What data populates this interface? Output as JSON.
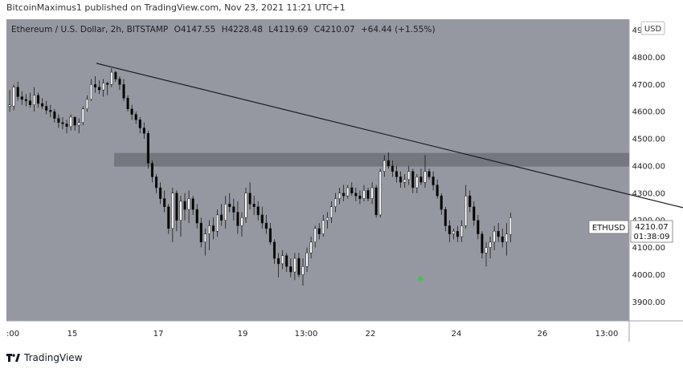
{
  "header": {
    "text": "BitcoinMaximus1 published on TradingView.com, Nov 23, 2021 11:21 UTC+1"
  },
  "legend": {
    "symbol": "Ethereum / U.S. Dollar, 2h, BITSTAMP",
    "o_label": "O",
    "o_value": "4147.55",
    "h_label": "H",
    "h_value": "4228.48",
    "l_label": "L",
    "l_value": "4119.69",
    "c_label": "C",
    "c_value": "4210.07",
    "change": "+64.44 (+1.55%)"
  },
  "currency_button": "USD",
  "price_tag": {
    "symbol": "ETHUSD",
    "price": "4210.07",
    "countdown": "01:38:09"
  },
  "footer": {
    "brand": "TradingView",
    "logo_icon": "tradingview-logo-icon"
  },
  "colors": {
    "plot_bg": "#9598a1",
    "candle_up": "#ffffff",
    "candle_down": "#000000",
    "zone": "#6f7178",
    "arrow": "#2ecc40"
  },
  "chart_data": {
    "type": "candlestick",
    "y_ticks": [
      "4900.00",
      "4800.00",
      "4700.00",
      "4600.00",
      "4500.00",
      "4400.00",
      "4300.00",
      "4200.00",
      "4100.00",
      "4000.00",
      "3900.00"
    ],
    "x_ticks": [
      ":00",
      "15",
      "17",
      "19",
      "13:00",
      "22",
      "24",
      "26",
      "13:00"
    ],
    "ylim": [
      3830,
      4940
    ],
    "resistance_zone": [
      4398,
      4448
    ],
    "trendline": [
      [
        11,
        4778
      ],
      [
        95,
        4158
      ]
    ],
    "arrow": {
      "x": 73.1,
      "y": 3985
    },
    "candles": [
      [
        0,
        4620,
        4680,
        4600,
        4625
      ],
      [
        0.5,
        4620,
        4700,
        4605,
        4690
      ],
      [
        1,
        4690,
        4710,
        4640,
        4655
      ],
      [
        1.5,
        4655,
        4675,
        4625,
        4645
      ],
      [
        2,
        4645,
        4665,
        4620,
        4640
      ],
      [
        2.5,
        4640,
        4670,
        4615,
        4625
      ],
      [
        3,
        4625,
        4690,
        4600,
        4660
      ],
      [
        3.5,
        4660,
        4670,
        4615,
        4630
      ],
      [
        4,
        4630,
        4650,
        4610,
        4620
      ],
      [
        4.5,
        4620,
        4640,
        4590,
        4605
      ],
      [
        5,
        4605,
        4625,
        4580,
        4600
      ],
      [
        5.5,
        4600,
        4610,
        4560,
        4575
      ],
      [
        6,
        4575,
        4590,
        4540,
        4560
      ],
      [
        6.5,
        4560,
        4580,
        4535,
        4555
      ],
      [
        7,
        4555,
        4570,
        4520,
        4545
      ],
      [
        7.5,
        4545,
        4590,
        4530,
        4580
      ],
      [
        8,
        4580,
        4570,
        4530,
        4550
      ],
      [
        8.5,
        4550,
        4575,
        4520,
        4560
      ],
      [
        9,
        4560,
        4620,
        4550,
        4610
      ],
      [
        9.5,
        4610,
        4660,
        4600,
        4645
      ],
      [
        10,
        4645,
        4720,
        4640,
        4700
      ],
      [
        10.5,
        4700,
        4730,
        4670,
        4690
      ],
      [
        11,
        4690,
        4715,
        4665,
        4680
      ],
      [
        11.5,
        4680,
        4720,
        4655,
        4705
      ],
      [
        12,
        4705,
        4710,
        4660,
        4700
      ],
      [
        12.5,
        4700,
        4760,
        4690,
        4745
      ],
      [
        13,
        4745,
        4750,
        4710,
        4720
      ],
      [
        13.5,
        4720,
        4730,
        4680,
        4700
      ],
      [
        14,
        4700,
        4720,
        4640,
        4650
      ],
      [
        14.5,
        4650,
        4660,
        4600,
        4610
      ],
      [
        15,
        4610,
        4625,
        4570,
        4590
      ],
      [
        15.5,
        4590,
        4600,
        4555,
        4570
      ],
      [
        16,
        4570,
        4580,
        4520,
        4540
      ],
      [
        16.5,
        4540,
        4560,
        4500,
        4520
      ],
      [
        17,
        4520,
        4530,
        4390,
        4410
      ],
      [
        17.5,
        4410,
        4420,
        4340,
        4360
      ],
      [
        18,
        4360,
        4370,
        4300,
        4320
      ],
      [
        18.5,
        4320,
        4340,
        4260,
        4280
      ],
      [
        19,
        4280,
        4310,
        4230,
        4250
      ],
      [
        19.5,
        4250,
        4260,
        4150,
        4170
      ],
      [
        20,
        4170,
        4320,
        4120,
        4300
      ],
      [
        20.5,
        4300,
        4310,
        4160,
        4200
      ],
      [
        21,
        4200,
        4290,
        4140,
        4270
      ],
      [
        21.5,
        4270,
        4300,
        4200,
        4240
      ],
      [
        22,
        4240,
        4310,
        4190,
        4280
      ],
      [
        22.5,
        4280,
        4290,
        4220,
        4240
      ],
      [
        23,
        4240,
        4260,
        4170,
        4190
      ],
      [
        23.5,
        4190,
        4210,
        4100,
        4120
      ],
      [
        24,
        4120,
        4170,
        4070,
        4150
      ],
      [
        24.5,
        4150,
        4200,
        4090,
        4180
      ],
      [
        25,
        4180,
        4210,
        4130,
        4160
      ],
      [
        25.5,
        4160,
        4240,
        4140,
        4220
      ],
      [
        26,
        4220,
        4260,
        4180,
        4200
      ],
      [
        26.5,
        4200,
        4290,
        4170,
        4260
      ],
      [
        27,
        4260,
        4300,
        4230,
        4250
      ],
      [
        27.5,
        4250,
        4280,
        4200,
        4230
      ],
      [
        28,
        4230,
        4270,
        4150,
        4180
      ],
      [
        28.5,
        4180,
        4230,
        4140,
        4210
      ],
      [
        29,
        4210,
        4320,
        4190,
        4300
      ],
      [
        29.5,
        4300,
        4340,
        4240,
        4260
      ],
      [
        30,
        4260,
        4290,
        4220,
        4250
      ],
      [
        30.5,
        4250,
        4270,
        4200,
        4220
      ],
      [
        31,
        4220,
        4250,
        4170,
        4190
      ],
      [
        31.5,
        4190,
        4220,
        4150,
        4170
      ],
      [
        32,
        4170,
        4190,
        4110,
        4120
      ],
      [
        32.5,
        4120,
        4130,
        4040,
        4060
      ],
      [
        33,
        4060,
        4080,
        3990,
        4040
      ],
      [
        33.5,
        4040,
        4090,
        4020,
        4070
      ],
      [
        34,
        4070,
        4080,
        4010,
        4030
      ],
      [
        34.5,
        4030,
        4060,
        3990,
        4010
      ],
      [
        35,
        4010,
        4080,
        3980,
        4060
      ],
      [
        35.5,
        4060,
        4080,
        3990,
        4000
      ],
      [
        36,
        4000,
        4060,
        3960,
        4030
      ],
      [
        36.5,
        4030,
        4100,
        4010,
        4080
      ],
      [
        37,
        4080,
        4140,
        4060,
        4120
      ],
      [
        37.5,
        4120,
        4180,
        4100,
        4170
      ],
      [
        38,
        4170,
        4190,
        4130,
        4150
      ],
      [
        38.5,
        4150,
        4220,
        4140,
        4200
      ],
      [
        39,
        4200,
        4230,
        4170,
        4210
      ],
      [
        39.5,
        4210,
        4270,
        4190,
        4250
      ],
      [
        40,
        4250,
        4300,
        4230,
        4280
      ],
      [
        40.5,
        4280,
        4320,
        4260,
        4300
      ],
      [
        41,
        4300,
        4330,
        4270,
        4290
      ],
      [
        41.5,
        4290,
        4330,
        4280,
        4320
      ],
      [
        42,
        4320,
        4340,
        4290,
        4300
      ],
      [
        42.5,
        4300,
        4320,
        4270,
        4290
      ],
      [
        43,
        4290,
        4310,
        4260,
        4280
      ],
      [
        43.5,
        4280,
        4330,
        4270,
        4310
      ],
      [
        44,
        4310,
        4320,
        4270,
        4280
      ],
      [
        44.5,
        4280,
        4340,
        4260,
        4320
      ],
      [
        45,
        4320,
        4330,
        4210,
        4220
      ],
      [
        45.5,
        4220,
        4390,
        4210,
        4380
      ],
      [
        46,
        4380,
        4440,
        4360,
        4420
      ],
      [
        46.5,
        4420,
        4450,
        4390,
        4400
      ],
      [
        47,
        4400,
        4420,
        4360,
        4380
      ],
      [
        47.5,
        4380,
        4400,
        4340,
        4360
      ],
      [
        48,
        4360,
        4380,
        4320,
        4340
      ],
      [
        48.5,
        4340,
        4370,
        4320,
        4350
      ],
      [
        49,
        4350,
        4400,
        4330,
        4380
      ],
      [
        49.5,
        4380,
        4390,
        4300,
        4320
      ],
      [
        50,
        4320,
        4370,
        4300,
        4360
      ],
      [
        50.5,
        4360,
        4390,
        4330,
        4340
      ],
      [
        51,
        4340,
        4440,
        4320,
        4380
      ],
      [
        51.5,
        4380,
        4390,
        4350,
        4360
      ],
      [
        52,
        4360,
        4380,
        4310,
        4330
      ],
      [
        52.5,
        4330,
        4350,
        4280,
        4290
      ],
      [
        53,
        4290,
        4300,
        4220,
        4240
      ],
      [
        53.5,
        4240,
        4250,
        4160,
        4180
      ],
      [
        54,
        4180,
        4200,
        4120,
        4150
      ],
      [
        54.5,
        4150,
        4170,
        4130,
        4160
      ],
      [
        55,
        4160,
        4180,
        4120,
        4140
      ],
      [
        55.5,
        4140,
        4200,
        4120,
        4180
      ],
      [
        56,
        4180,
        4330,
        4170,
        4290
      ],
      [
        56.5,
        4290,
        4310,
        4230,
        4250
      ],
      [
        57,
        4250,
        4270,
        4180,
        4200
      ],
      [
        57.5,
        4200,
        4220,
        4130,
        4150
      ],
      [
        58,
        4150,
        4160,
        4060,
        4080
      ],
      [
        58.5,
        4080,
        4120,
        4030,
        4100
      ],
      [
        59,
        4100,
        4140,
        4060,
        4120
      ],
      [
        59.5,
        4120,
        4180,
        4090,
        4160
      ],
      [
        60,
        4160,
        4190,
        4120,
        4140
      ],
      [
        60.5,
        4140,
        4170,
        4100,
        4120
      ],
      [
        61,
        4120,
        4190,
        4070,
        4150
      ],
      [
        61.5,
        4147.55,
        4228.48,
        4119.69,
        4210.07
      ]
    ]
  }
}
